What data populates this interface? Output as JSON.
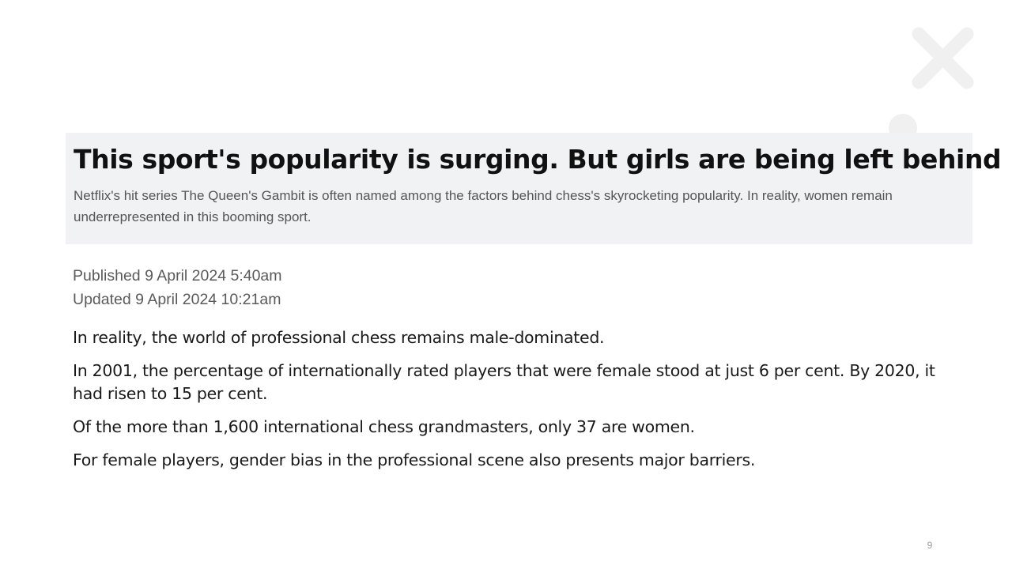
{
  "article": {
    "headline": "This sport's popularity is surging. But girls are being left behind",
    "standfirst": "Netflix's hit series The Queen's Gambit is often named among the factors behind chess's skyrocketing popularity. In reality, women remain underrepresented in this booming sport.",
    "published": "Published 9 April 2024 5:40am",
    "updated": "Updated 9 April 2024 10:21am"
  },
  "body": {
    "paragraphs": [
      "In reality, the world of professional chess remains male-dominated.",
      "In 2001, the percentage of internationally rated players that were female stood at just 6 per cent. By 2020, it had risen to 15 per cent.",
      "Of the more than 1,600 international chess grandmasters, only 37 are women.",
      "For female players, gender bias in the professional scene also presents major barriers."
    ]
  },
  "slide": {
    "page_number": "9"
  },
  "decoration": {
    "icon": "close-x-decoration-icon",
    "color": "#f0f0f0"
  }
}
